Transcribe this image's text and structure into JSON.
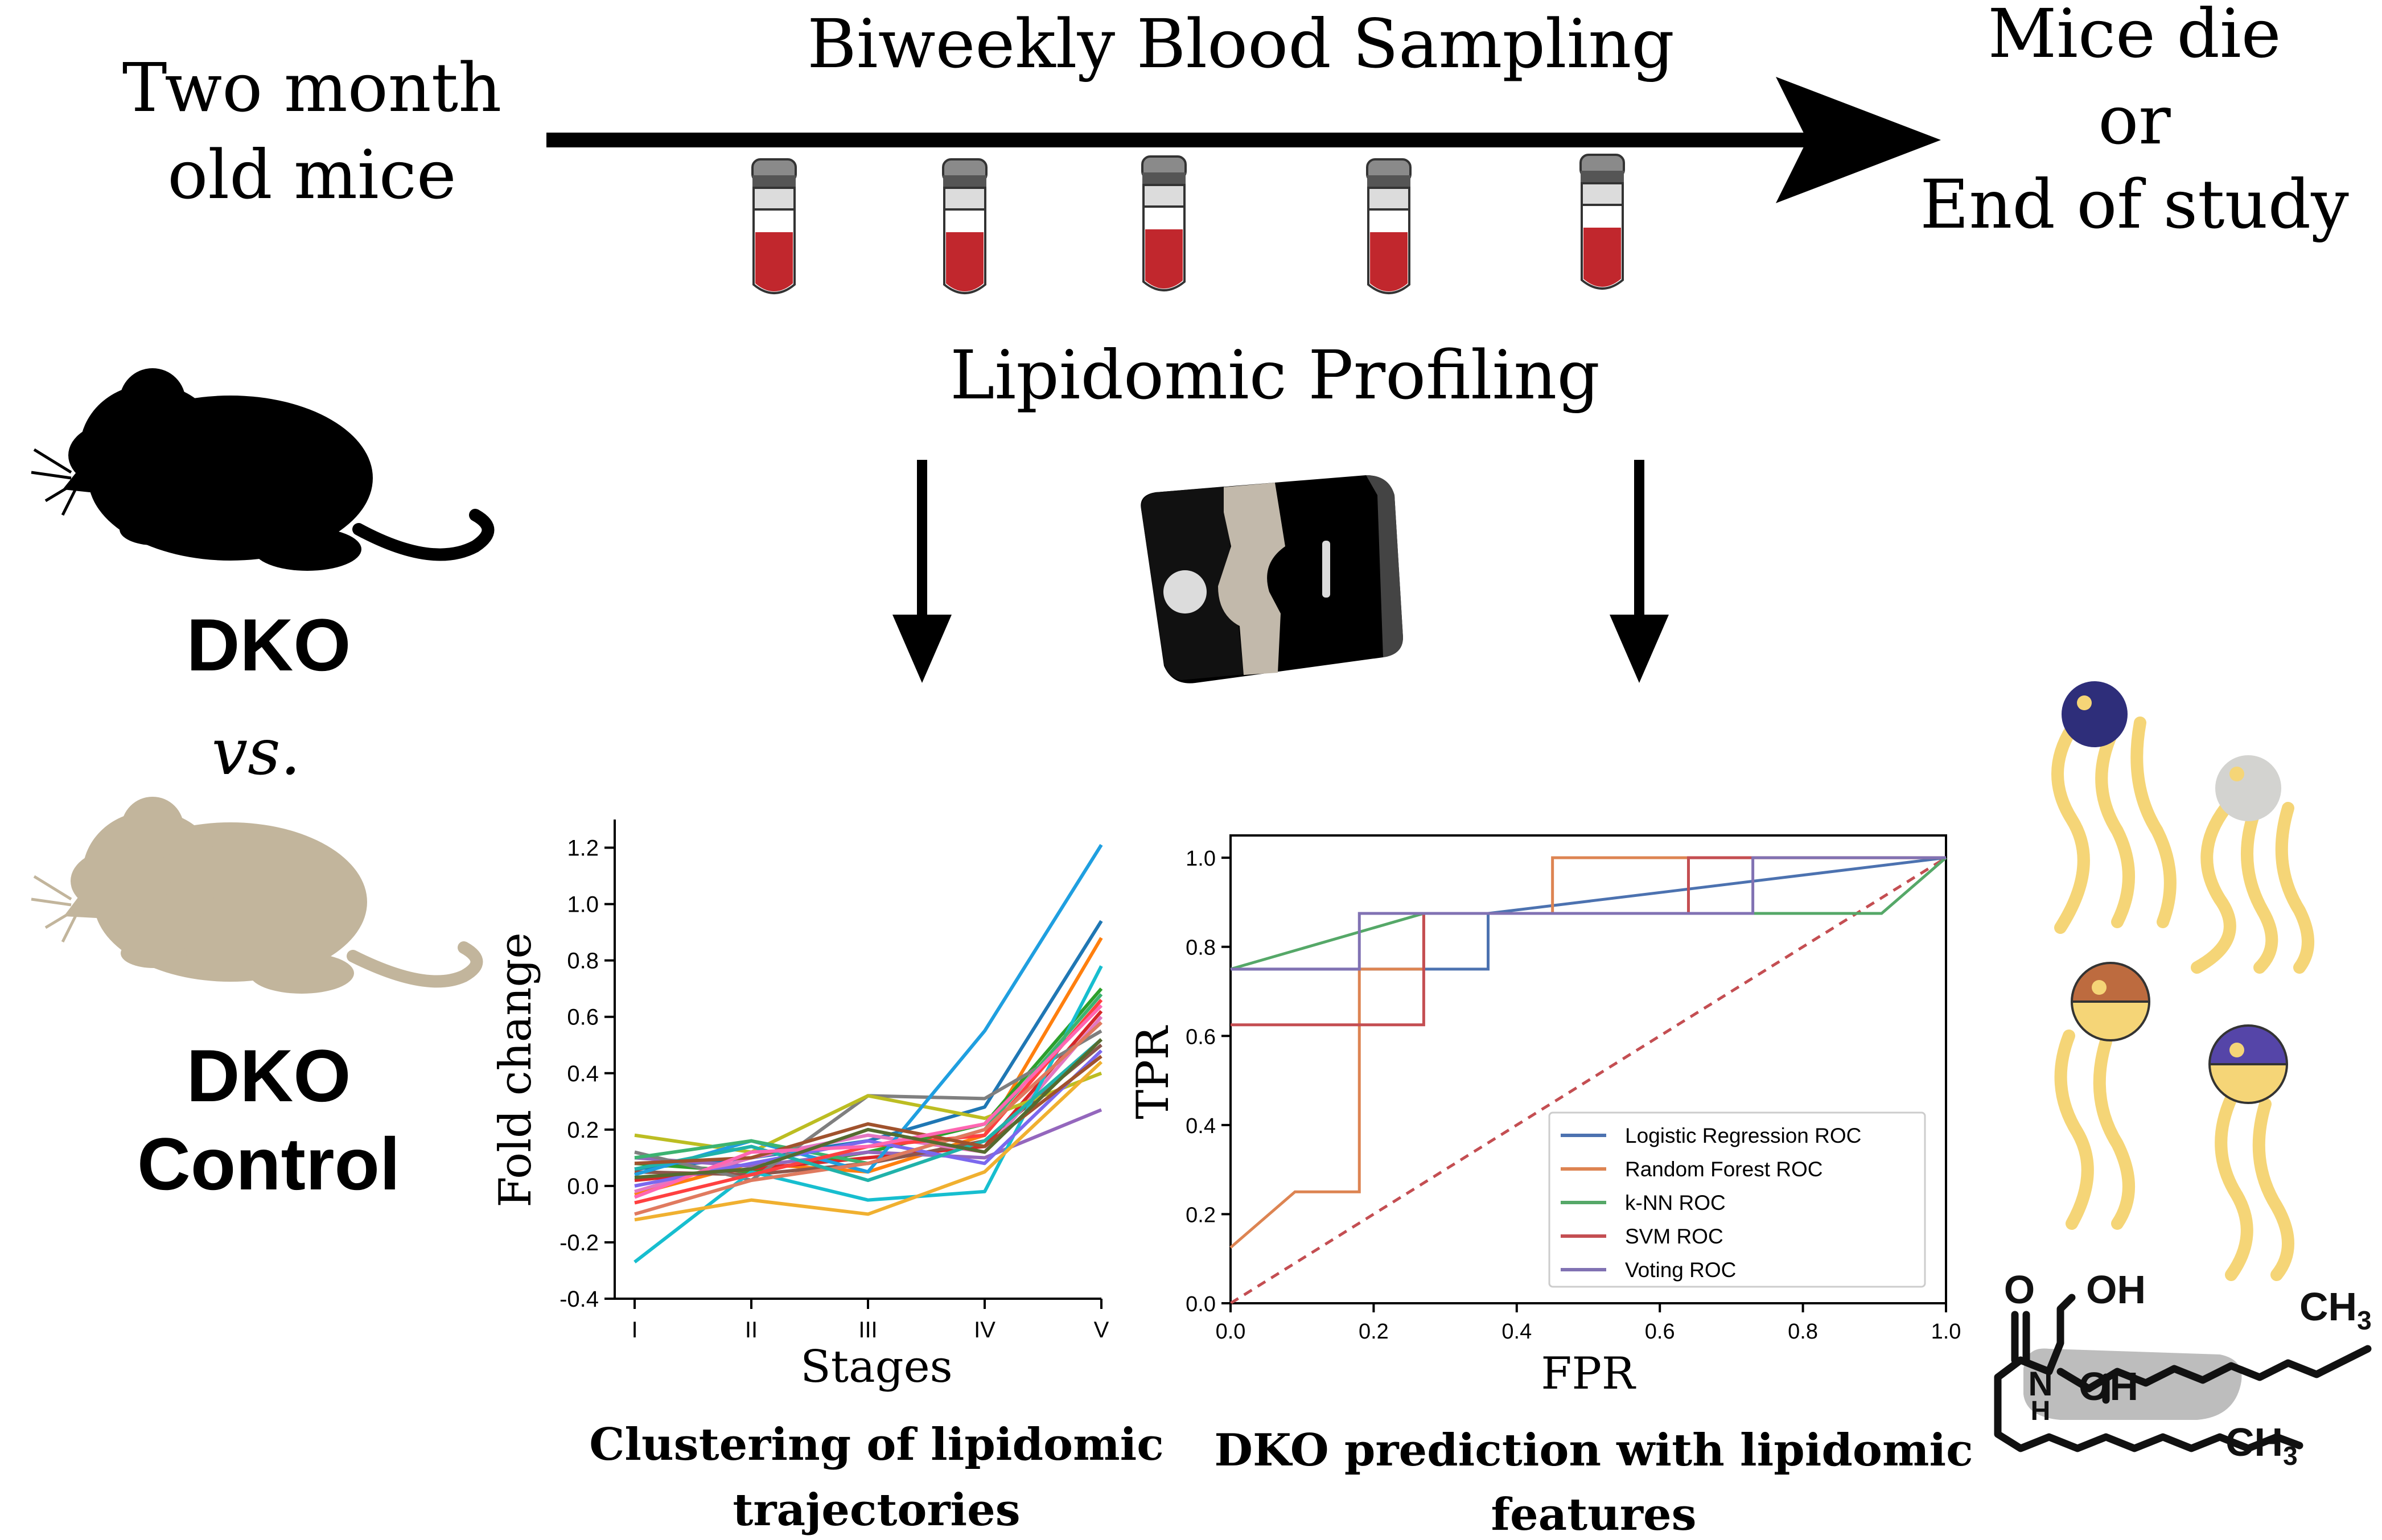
{
  "timeline": {
    "start_line1": "Two month",
    "start_line2": "old mice",
    "sampling_label": "Biweekly Blood Sampling",
    "end_line1": "Mice die",
    "end_line2": "or",
    "end_line3": "End of study",
    "tube_count": 5
  },
  "profiling_label": "Lipidomic Profiling",
  "groups": {
    "dko_label": "DKO",
    "vs_label": "vs.",
    "control_line1": "DKO",
    "control_line2": "Control",
    "dko_color": "#000000",
    "control_color": "#c2b59c"
  },
  "captions": {
    "left_line1": "Clustering of lipidomic",
    "left_line2": "trajectories",
    "right_line1": "DKO prediction with lipidomic",
    "right_line2": "features"
  },
  "lipid_structure": {
    "o_label": "O",
    "oh1_label": "OH",
    "ch3_top_label": "CH",
    "ch3_top_sub": "3",
    "n_label": "N",
    "h_label": "H",
    "oh2_label": "OH",
    "ch3_bottom_label": "CH",
    "ch3_bottom_sub": "3"
  },
  "chart_data": [
    {
      "type": "line",
      "xlabel": "Stages",
      "ylabel": "Fold change",
      "categories": [
        "I",
        "II",
        "III",
        "IV",
        "V"
      ],
      "yticks": [
        "-0.4",
        "-0.2",
        "0.0",
        "0.2",
        "0.4",
        "0.6",
        "0.8",
        "1.0",
        "1.2"
      ],
      "ylim": [
        -0.4,
        1.3
      ],
      "series": [
        {
          "color": "#1f77b4",
          "values": [
            0.06,
            0.1,
            0.16,
            0.28,
            0.94
          ]
        },
        {
          "color": "#ff7f0e",
          "values": [
            -0.03,
            0.08,
            0.05,
            0.18,
            0.88
          ]
        },
        {
          "color": "#2ca02c",
          "values": [
            0.08,
            0.05,
            0.12,
            0.22,
            0.7
          ]
        },
        {
          "color": "#d62728",
          "values": [
            0.02,
            0.06,
            0.1,
            0.14,
            0.62
          ]
        },
        {
          "color": "#9467bd",
          "values": [
            0.1,
            0.07,
            0.12,
            0.1,
            0.27
          ]
        },
        {
          "color": "#8c564b",
          "values": [
            0.05,
            0.04,
            0.08,
            0.16,
            0.5
          ]
        },
        {
          "color": "#e377c2",
          "values": [
            -0.02,
            0.1,
            0.18,
            0.12,
            0.6
          ]
        },
        {
          "color": "#7f7f7f",
          "values": [
            0.12,
            0.02,
            0.32,
            0.31,
            0.55
          ]
        },
        {
          "color": "#bcbd22",
          "values": [
            0.18,
            0.12,
            0.32,
            0.24,
            0.4
          ]
        },
        {
          "color": "#17becf",
          "values": [
            -0.27,
            0.05,
            -0.05,
            -0.02,
            0.78
          ]
        },
        {
          "color": "#1f9fe0",
          "values": [
            0.04,
            0.16,
            0.05,
            0.55,
            1.21
          ]
        },
        {
          "color": "#f0b030",
          "values": [
            -0.12,
            -0.05,
            -0.1,
            0.05,
            0.44
          ]
        },
        {
          "color": "#3cb371",
          "values": [
            0.1,
            0.16,
            0.08,
            0.2,
            0.68
          ]
        },
        {
          "color": "#ff4040",
          "values": [
            -0.06,
            0.04,
            0.14,
            0.18,
            0.66
          ]
        },
        {
          "color": "#7b68ee",
          "values": [
            0.0,
            0.08,
            0.16,
            0.08,
            0.48
          ]
        },
        {
          "color": "#e07a5f",
          "values": [
            -0.1,
            0.02,
            0.08,
            0.2,
            0.58
          ]
        },
        {
          "color": "#20b2aa",
          "values": [
            0.06,
            0.14,
            0.02,
            0.16,
            0.52
          ]
        },
        {
          "color": "#a0522d",
          "values": [
            0.08,
            0.1,
            0.22,
            0.14,
            0.46
          ]
        },
        {
          "color": "#ff66b2",
          "values": [
            -0.04,
            0.12,
            0.14,
            0.22,
            0.64
          ]
        },
        {
          "color": "#556b2f",
          "values": [
            0.03,
            0.06,
            0.2,
            0.12,
            0.52
          ]
        }
      ]
    },
    {
      "type": "line",
      "xlabel": "FPR",
      "ylabel": "TPR",
      "xticks": [
        "0.0",
        "0.2",
        "0.4",
        "0.6",
        "0.8",
        "1.0"
      ],
      "yticks": [
        "0.0",
        "0.2",
        "0.4",
        "0.6",
        "0.8",
        "1.0"
      ],
      "xlim": [
        0,
        1
      ],
      "ylim": [
        0,
        1.05
      ],
      "legend_position": "bottom-right",
      "diagonal_color": "#c44e52",
      "series": [
        {
          "name": "Logistic Regression ROC",
          "color": "#4c72b0",
          "x": [
            0,
            0.18,
            0.18,
            0.36,
            0.36,
            1.0
          ],
          "y": [
            0.75,
            0.75,
            0.75,
            0.75,
            0.875,
            1.0
          ]
        },
        {
          "name": "Random Forest ROC",
          "color": "#dd8452",
          "x": [
            0,
            0.09,
            0.18,
            0.18,
            0.27,
            0.27,
            0.45,
            0.45,
            1.0
          ],
          "y": [
            0.125,
            0.25,
            0.25,
            0.75,
            0.75,
            0.875,
            0.875,
            1.0,
            1.0
          ]
        },
        {
          "name": "k-NN ROC",
          "color": "#55a868",
          "x": [
            0,
            0.27,
            0.91,
            1.0
          ],
          "y": [
            0.75,
            0.875,
            0.875,
            1.0
          ]
        },
        {
          "name": "SVM ROC",
          "color": "#c44e52",
          "x": [
            0,
            0.27,
            0.27,
            0.64,
            0.64,
            1.0
          ],
          "y": [
            0.625,
            0.625,
            0.875,
            0.875,
            1.0,
            1.0
          ]
        },
        {
          "name": "Voting ROC",
          "color": "#8172b3",
          "x": [
            0,
            0.18,
            0.18,
            0.73,
            0.73,
            1.0
          ],
          "y": [
            0.75,
            0.75,
            0.875,
            0.875,
            1.0,
            1.0
          ]
        }
      ]
    }
  ]
}
